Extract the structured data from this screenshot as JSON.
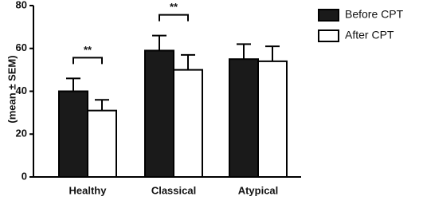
{
  "chart_data": {
    "type": "bar",
    "y_label": "(mean ± SEM)",
    "categories": [
      "Healthy",
      "Classical",
      "Atypical"
    ],
    "series": [
      {
        "name": "Before CPT",
        "color": "#1a1a1a",
        "values": [
          40,
          59,
          55
        ],
        "errors": [
          6,
          7,
          7
        ]
      },
      {
        "name": "After CPT",
        "color": "#ffffff",
        "values": [
          31,
          50,
          54
        ],
        "errors": [
          5,
          7,
          7
        ]
      }
    ],
    "significance": [
      {
        "category": "Healthy",
        "label": "**"
      },
      {
        "category": "Classical",
        "label": "**"
      }
    ],
    "ylim": [
      0,
      80
    ],
    "yticks": [
      0,
      20,
      40,
      60,
      80
    ],
    "legend": "upper right"
  }
}
